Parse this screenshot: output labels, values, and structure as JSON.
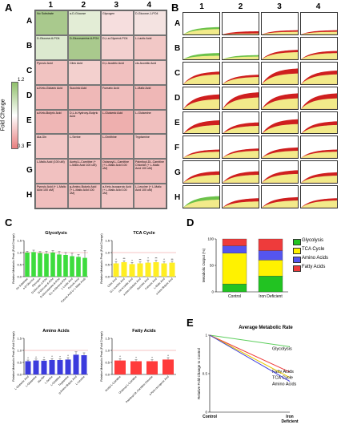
{
  "panels": {
    "A": "A",
    "B": "B",
    "C": "C",
    "D": "D",
    "E": "E"
  },
  "panelA": {
    "columns": [
      "1",
      "2",
      "3",
      "4"
    ],
    "rows": [
      "A",
      "B",
      "C",
      "D",
      "E",
      "F",
      "G",
      "H"
    ],
    "cells": [
      [
        "No Substrate",
        "a-D-Glucose",
        "Glycogen",
        "D-Glucose-1-PO4"
      ],
      [
        "D-Glucose-6-PO4",
        "D-Glucosamine-6-PO4",
        "D,L-a-Glycerol-PO4",
        "L-Lactic Acid"
      ],
      [
        "Pyruvic Acid",
        "Citric Acid",
        "D,L-Isocitric Acid",
        "cis-Aconitic Acid"
      ],
      [
        "a-Keto-Glutaric Acid",
        "Succinic Acid",
        "Fumaric Acid",
        "L-Malic Acid"
      ],
      [
        "a-Keto-Butyric Acid",
        "D,L-b-Hydroxy-Butyric Acid",
        "L-Glutamic Acid",
        "L-Glutamine"
      ],
      [
        "Ala-Gln",
        "L-Serine",
        "L-Ornithine",
        "Tryptamine"
      ],
      [
        "L-Malic Acid (100 uM)",
        "Acetyl-L-Carnitine (+ L-Malic Acid 100 uM)",
        "Octanoyl-L-Carnitine (+ L-Malic Acid 100 uM)",
        "Palmitoyl-DL-Carnitine Chloride (+ L-Malic Acid 100 uM)"
      ],
      [
        "Pyruvic Acid (+ L-Malic Acid 100 uM)",
        "g-Amino-Butyric Acid (+ L-Malic Acid 100 uM)",
        "a-Keto-Isocaproic Acid (+ L-Malic Acid 100 uM)",
        "L-Leucine (+ L-Malic Acid 100 uM)"
      ]
    ],
    "cell_colors": [
      [
        "#a9c98d",
        "#e3edd6",
        "#f6dede",
        "#f4e3e1"
      ],
      [
        "#dce9cf",
        "#a9c98d",
        "#f3d0cf",
        "#f2c8c6"
      ],
      [
        "#f1c3c1",
        "#f3d0ce",
        "#f1c0bf",
        "#f3cdcc"
      ],
      [
        "#efb9b8",
        "#efb8b7",
        "#f0bdbc",
        "#efb7b6"
      ],
      [
        "#efb6b5",
        "#f0bebd",
        "#eeafae",
        "#f0bfbe"
      ],
      [
        "#f2c6c5",
        "#f2c8c7",
        "#f0bcbb",
        "#f2c6c5"
      ],
      [
        "#f1c1c0",
        "#f0bdbc",
        "#efb8b7",
        "#f0bcbb"
      ],
      [
        "#f0bebd",
        "#f0bebd",
        "#f2c6c5",
        "#f1c1c0"
      ]
    ],
    "colorbar": {
      "label": "Fold Change",
      "max": "1.2",
      "min": "0.3",
      "top_color": "#8fbf6a",
      "mid_color": "#ffffff",
      "bottom_color": "#e87f7f"
    }
  },
  "panelB": {
    "columns": [
      "1",
      "2",
      "3",
      "4"
    ],
    "rows": [
      "A",
      "B",
      "C",
      "D",
      "E",
      "F",
      "G",
      "H"
    ],
    "curves": [
      [
        [
          0.35,
          0.3
        ],
        [
          0.15,
          0.05
        ],
        [
          0.2,
          0.15
        ],
        [
          0.2,
          0.15
        ]
      ],
      [
        [
          0.3,
          0.2
        ],
        [
          0.2,
          0.15
        ],
        [
          0.45,
          0.4
        ],
        [
          0.4,
          0.35
        ]
      ],
      [
        [
          0.55,
          0.6
        ],
        [
          0.45,
          0.4
        ],
        [
          0.6,
          0.75
        ],
        [
          0.55,
          0.65
        ]
      ],
      [
        [
          0.55,
          0.7
        ],
        [
          0.65,
          0.8
        ],
        [
          0.6,
          0.75
        ],
        [
          0.6,
          0.75
        ]
      ],
      [
        [
          0.5,
          0.65
        ],
        [
          0.45,
          0.55
        ],
        [
          0.55,
          0.7
        ],
        [
          0.5,
          0.6
        ]
      ],
      [
        [
          0.35,
          0.4
        ],
        [
          0.4,
          0.45
        ],
        [
          0.4,
          0.5
        ],
        [
          0.35,
          0.4
        ]
      ],
      [
        [
          0.45,
          0.55
        ],
        [
          0.45,
          0.55
        ],
        [
          0.5,
          0.6
        ],
        [
          0.4,
          0.5
        ]
      ],
      [
        [
          0.45,
          0.55
        ],
        [
          0.35,
          0.45
        ],
        [
          0.4,
          0.5
        ],
        [
          0.4,
          0.45
        ]
      ]
    ],
    "colors": {
      "control": "#cf1f1f",
      "treated": "#f2ea8a",
      "glycolysis": "#6cc24a"
    }
  },
  "chart_data": [
    {
      "type": "bar",
      "title": "Glycolysis",
      "ylabel": "Relative Metabolic Peak (Fold Change)",
      "ylim": [
        0,
        1.5
      ],
      "yticks": [
        "0.0",
        "0.5",
        "1.0",
        "1.5"
      ],
      "categories": [
        "No Substrate",
        "a-D-Glucose",
        "Glycogen",
        "D-Glucose-1-PO4",
        "D-Glucose-6-PO4",
        "D-Glucosamine-6-PO4",
        "D,L-a-Glycerol-PO4",
        "L-Lactic Acid",
        "Pyruvic Acid",
        "Pyruvic Acid (+ L-Malic Acid)"
      ],
      "values": [
        1.0,
        1.02,
        0.98,
        0.95,
        1.0,
        0.92,
        0.9,
        0.85,
        0.82,
        0.78
      ],
      "errors": [
        0.05,
        0.08,
        0.06,
        0.1,
        0.08,
        0.12,
        0.1,
        0.12,
        0.1,
        0.3
      ],
      "color": "#3ddc3d"
    },
    {
      "type": "bar",
      "title": "TCA Cycle",
      "ylabel": "Relative Metabolic Peak (Fold Change)",
      "ylim": [
        0,
        1.5
      ],
      "yticks": [
        "0.0",
        "0.5",
        "1.0",
        "1.5"
      ],
      "categories": [
        "Citric Acid",
        "D,L-Isocitric Acid",
        "cis-Aconitic Acid",
        "a-Keto-Glutaric Acid",
        "Succinic Acid",
        "Fumaric Acid",
        "L-Malic Acid",
        "a-Keto-Butyric Acid"
      ],
      "values": [
        0.55,
        0.6,
        0.52,
        0.55,
        0.58,
        0.6,
        0.55,
        0.58
      ],
      "errors": [
        0.08,
        0.06,
        0.07,
        0.06,
        0.1,
        0.08,
        0.08,
        0.06
      ],
      "sig": [
        "*",
        "**",
        "*",
        "**",
        "*",
        "**",
        "*",
        "**"
      ],
      "color": "#ffee22"
    },
    {
      "type": "bar",
      "title": "Amino Acids",
      "ylabel": "Relative Metabolic Peak (Fold Change)",
      "ylim": [
        0,
        1.5
      ],
      "yticks": [
        "0.0",
        "0.5",
        "1.0",
        "1.5"
      ],
      "categories": [
        "L-Glutamic Acid",
        "L-Glutamine",
        "Ala-Gln",
        "L-Serine",
        "L-Ornithine",
        "Tryptamine",
        "g-Amino-Butyric Acid",
        "L-Leucine"
      ],
      "values": [
        0.55,
        0.58,
        0.57,
        0.6,
        0.6,
        0.62,
        0.82,
        0.8
      ],
      "errors": [
        0.05,
        0.06,
        0.05,
        0.06,
        0.05,
        0.08,
        0.12,
        0.1
      ],
      "sig": [
        "*",
        "*",
        "*",
        "*",
        "*",
        "*",
        "",
        ""
      ],
      "color": "#3b3bdd"
    },
    {
      "type": "bar",
      "title": "Fatty Acids",
      "ylabel": "Relative Metabolic Peak (Fold Change)",
      "ylim": [
        0,
        1.5
      ],
      "yticks": [
        "0.0",
        "0.5",
        "1.0",
        "1.5"
      ],
      "categories": [
        "Acetyl-L-Carnitine",
        "Octanoyl-L-Carnitine",
        "Palmitoyl-DL-Carnitine Chloride",
        "a-Keto-Isocaproic Acid"
      ],
      "values": [
        0.58,
        0.55,
        0.55,
        0.62
      ],
      "errors": [
        0.08,
        0.06,
        0.06,
        0.08
      ],
      "sig": [
        "*",
        "*",
        "*",
        "*"
      ],
      "color": "#ff3b3b"
    },
    {
      "type": "bar",
      "stacked": true,
      "ylabel": "Metabolic Output (%)",
      "ylim": [
        0,
        100
      ],
      "yticks": [
        "0",
        "50",
        "100"
      ],
      "categories": [
        "Control",
        "Iron Deficient"
      ],
      "series": [
        {
          "name": "Glycolysis",
          "values": [
            15,
            30
          ],
          "color": "#22c322"
        },
        {
          "name": "TCA Cycle",
          "values": [
            58,
            30
          ],
          "color": "#fff200"
        },
        {
          "name": "Amino Acids",
          "values": [
            14,
            18
          ],
          "color": "#5555ee"
        },
        {
          "name": "Fatty Acids",
          "values": [
            13,
            22
          ],
          "color": "#ee3b3b"
        }
      ]
    },
    {
      "type": "line",
      "title": "Average Metabolic Rate",
      "ylabel": "Relative Fold Change to Control",
      "xlabels": [
        "Control",
        "Iron\nDeficient"
      ],
      "yticks": [
        "1",
        "0.5",
        "0"
      ],
      "ylim": [
        0,
        1
      ],
      "series": [
        {
          "name": "Glycolysis",
          "values": [
            1,
            0.85
          ],
          "color": "#5ecf5e"
        },
        {
          "name": "Fatty Acids",
          "values": [
            1,
            0.52
          ],
          "color": "#ee3b3b"
        },
        {
          "name": "TCA Cycle",
          "values": [
            1,
            0.45
          ],
          "color": "#e8c800"
        },
        {
          "name": "Amino Acids",
          "values": [
            1,
            0.4
          ],
          "color": "#3b3bdd"
        }
      ]
    }
  ]
}
